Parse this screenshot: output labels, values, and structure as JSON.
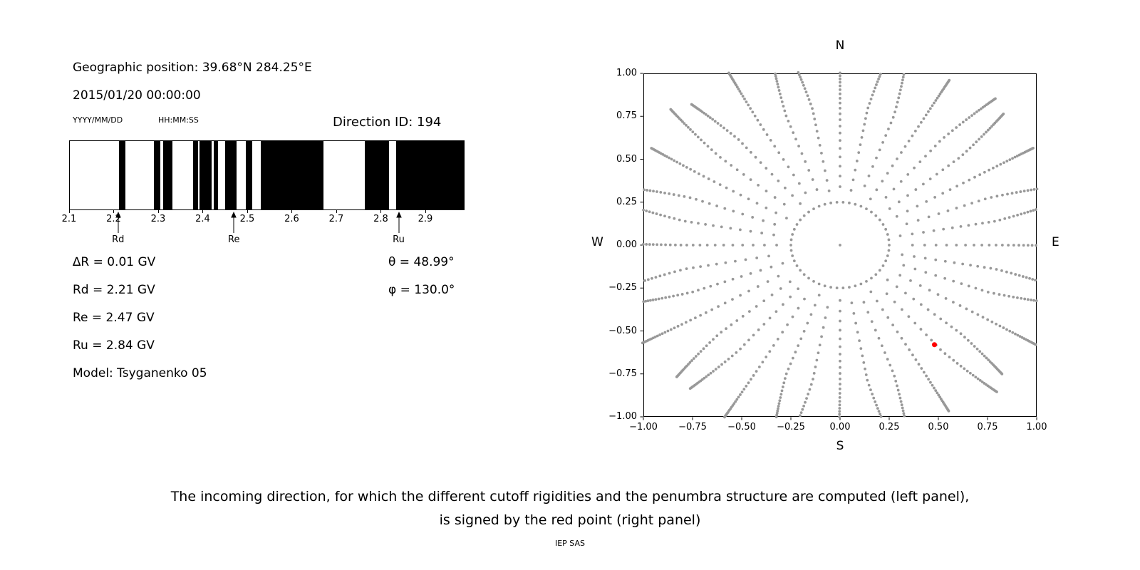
{
  "left_panel": {
    "geo_position": "Geographic position: 39.68°N 284.25°E",
    "datetime": "2015/01/20 00:00:00",
    "date_format": "YYYY/MM/DD",
    "time_format": "HH:MM:SS",
    "direction_id": "Direction ID: 194",
    "info_lines": [
      "∆R = 0.01 GV",
      "Rd = 2.21 GV",
      "Re = 2.47 GV",
      "Ru = 2.84 GV",
      "Model: Tsyganenko 05"
    ],
    "theta": "θ = 48.99°",
    "phi": "φ = 130.0°"
  },
  "chart_data": [
    {
      "type": "bar",
      "description": "Penumbra structure: forbidden rigidity bands (black) over allowed bands (white)",
      "x_range": [
        2.1,
        2.988
      ],
      "x_ticks": [
        2.1,
        2.2,
        2.3,
        2.4,
        2.5,
        2.6,
        2.7,
        2.8,
        2.9
      ],
      "black_bands": [
        [
          2.21,
          2.226
        ],
        [
          2.289,
          2.304
        ],
        [
          2.31,
          2.331
        ],
        [
          2.377,
          2.389
        ],
        [
          2.393,
          2.419
        ],
        [
          2.424,
          2.434
        ],
        [
          2.45,
          2.475
        ],
        [
          2.497,
          2.511
        ],
        [
          2.53,
          2.672
        ],
        [
          2.764,
          2.82
        ],
        [
          2.835,
          2.988
        ]
      ],
      "markers": [
        {
          "label": "Rd",
          "value": 2.21
        },
        {
          "label": "Re",
          "value": 2.47
        },
        {
          "label": "Ru",
          "value": 2.84
        }
      ],
      "band_color": "#000000"
    },
    {
      "type": "scatter",
      "description": "Sky map of directions (gray dots in radial spokes plus inner ring); red point marks the incoming direction",
      "xlim": [
        -1,
        1
      ],
      "ylim": [
        -1,
        1
      ],
      "ticks": [
        -1.0,
        -0.75,
        -0.5,
        -0.25,
        0.0,
        0.25,
        0.5,
        0.75,
        1.0
      ],
      "compass": {
        "top": "N",
        "right": "E",
        "bottom": "S",
        "left": "W"
      },
      "dot_color": "#999999",
      "dot_radius": 1.9,
      "spokes": {
        "count": 36,
        "r_start": 0.34,
        "start_jitter": 0.03,
        "step0": 0.062,
        "decay": 0.93,
        "min_step": 0.006,
        "bend_deg": 9,
        "clip": 1.005
      },
      "inner_ring": {
        "radius": 0.25,
        "count": 50
      },
      "center_dot": true,
      "red_point": {
        "x": 0.48,
        "y": -0.58,
        "color": "#ff0000",
        "radius": 3.5
      }
    }
  ],
  "caption": {
    "line1": "The incoming direction, for which the different cutoff rigidities and the penumbra structure are computed (left panel),",
    "line2": "is signed by the red point (right panel)"
  },
  "footer": {
    "text": "IEP SAS"
  }
}
